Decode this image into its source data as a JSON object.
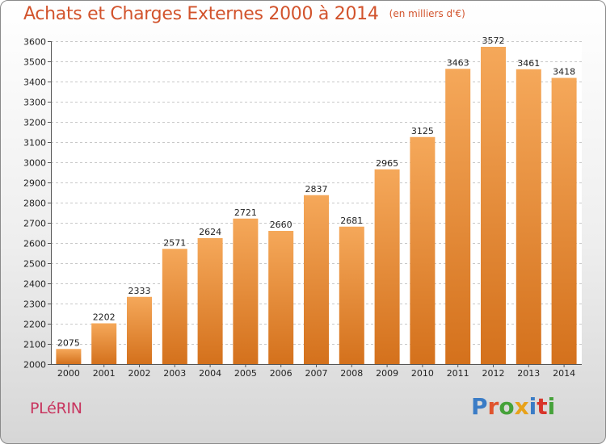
{
  "header": {
    "title": "Achats et Charges Externes 2000 à 2014",
    "subtitle": "(en milliers d'€)"
  },
  "footer": {
    "city": "PLéRIN",
    "brand": "Proxiti",
    "brand_colors": [
      "#3a7cc6",
      "#e0542e",
      "#46a23a",
      "#e8a21a",
      "#3a7cc6",
      "#d8352b",
      "#46a23a"
    ]
  },
  "chart_data": {
    "type": "bar",
    "categories": [
      "2000",
      "2001",
      "2002",
      "2003",
      "2004",
      "2005",
      "2006",
      "2007",
      "2008",
      "2009",
      "2010",
      "2011",
      "2012",
      "2013",
      "2014"
    ],
    "values": [
      2075,
      2202,
      2333,
      2571,
      2624,
      2721,
      2660,
      2837,
      2681,
      2965,
      3125,
      3463,
      3572,
      3461,
      3418
    ],
    "ylim": [
      2000,
      3600
    ],
    "ytick_step": 100,
    "grid": true,
    "bar_color_top": "#f5a85a",
    "bar_color_bottom": "#d4711c",
    "grid_color": "#c8c8c8"
  }
}
